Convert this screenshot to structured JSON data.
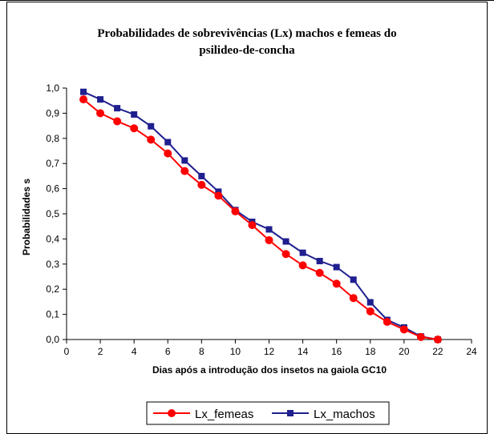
{
  "chart_data": {
    "type": "line",
    "title_lines": [
      "Probabilidades de sobrevivências (Lx) machos e femeas do",
      "psilideo-de-concha"
    ],
    "xlabel": "Dias após a introdução dos insetos na gaiola GC10",
    "ylabel": "Probabilidades s",
    "xlim": [
      0,
      24
    ],
    "ylim": [
      0,
      1.0
    ],
    "x_ticks": [
      "0",
      "2",
      "4",
      "6",
      "8",
      "10",
      "12",
      "14",
      "16",
      "18",
      "20",
      "22",
      "24"
    ],
    "y_ticks": [
      "0,0",
      "0,1",
      "0,2",
      "0,3",
      "0,4",
      "0,5",
      "0,6",
      "0,7",
      "0,8",
      "0,9",
      "1,0"
    ],
    "grid": false,
    "legend_position": "bottom",
    "x": [
      1,
      2,
      3,
      4,
      5,
      6,
      7,
      8,
      9,
      10,
      11,
      12,
      13,
      14,
      15,
      16,
      17,
      18,
      19,
      20,
      21,
      22
    ],
    "series": [
      {
        "name": "Lx_femeas",
        "color": "#ff0000",
        "marker": "circle",
        "values": [
          0.955,
          0.9,
          0.868,
          0.84,
          0.795,
          0.74,
          0.67,
          0.615,
          0.572,
          0.51,
          0.455,
          0.395,
          0.34,
          0.295,
          0.265,
          0.222,
          0.165,
          0.112,
          0.07,
          0.04,
          0.01,
          0.0
        ]
      },
      {
        "name": "Lx_machos",
        "color": "#1f1f8f",
        "marker": "square",
        "values": [
          0.985,
          0.955,
          0.92,
          0.895,
          0.848,
          0.785,
          0.712,
          0.65,
          0.588,
          0.515,
          0.468,
          0.438,
          0.39,
          0.345,
          0.312,
          0.288,
          0.238,
          0.148,
          0.078,
          0.048,
          0.012,
          0.0
        ]
      }
    ]
  }
}
